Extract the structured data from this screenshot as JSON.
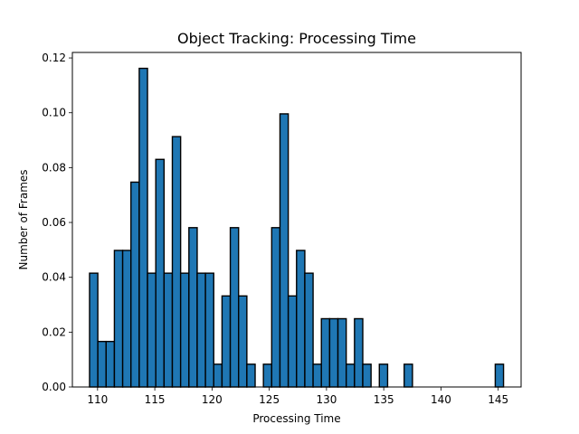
{
  "chart_data": {
    "type": "bar",
    "title": "Object Tracking: Processing Time",
    "xlabel": "Processing Time",
    "ylabel": "Number of Frames",
    "xlim": [
      107.8,
      147.0
    ],
    "ylim": [
      0,
      0.122
    ],
    "grid": false,
    "x_ticks": [
      110,
      115,
      120,
      125,
      130,
      135,
      140,
      145
    ],
    "y_ticks": [
      0.0,
      0.02,
      0.04,
      0.06,
      0.08,
      0.1,
      0.12
    ],
    "x_tick_labels": [
      "110",
      "115",
      "120",
      "125",
      "130",
      "135",
      "140",
      "145"
    ],
    "y_tick_labels": [
      "0.00",
      "0.02",
      "0.04",
      "0.06",
      "0.08",
      "0.10",
      "0.12"
    ],
    "bin_start": 109.3,
    "bin_width": 0.7233,
    "values": [
      0.0415,
      0.0166,
      0.0166,
      0.0498,
      0.0498,
      0.0747,
      0.1162,
      0.0415,
      0.083,
      0.0415,
      0.0913,
      0.0415,
      0.0581,
      0.0415,
      0.0415,
      0.0083,
      0.0332,
      0.0581,
      0.0332,
      0.0083,
      0.0,
      0.0083,
      0.0581,
      0.0996,
      0.0332,
      0.0498,
      0.0415,
      0.0083,
      0.0249,
      0.0249,
      0.0249,
      0.0083,
      0.0249,
      0.0083,
      0.0,
      0.0083,
      0.0,
      0.0,
      0.0083,
      0.0,
      0.0,
      0.0,
      0.0,
      0.0,
      0.0,
      0.0,
      0.0,
      0.0,
      0.0,
      0.0083
    ],
    "bar_color": "#1f77b4",
    "edge_color": "#000000"
  }
}
